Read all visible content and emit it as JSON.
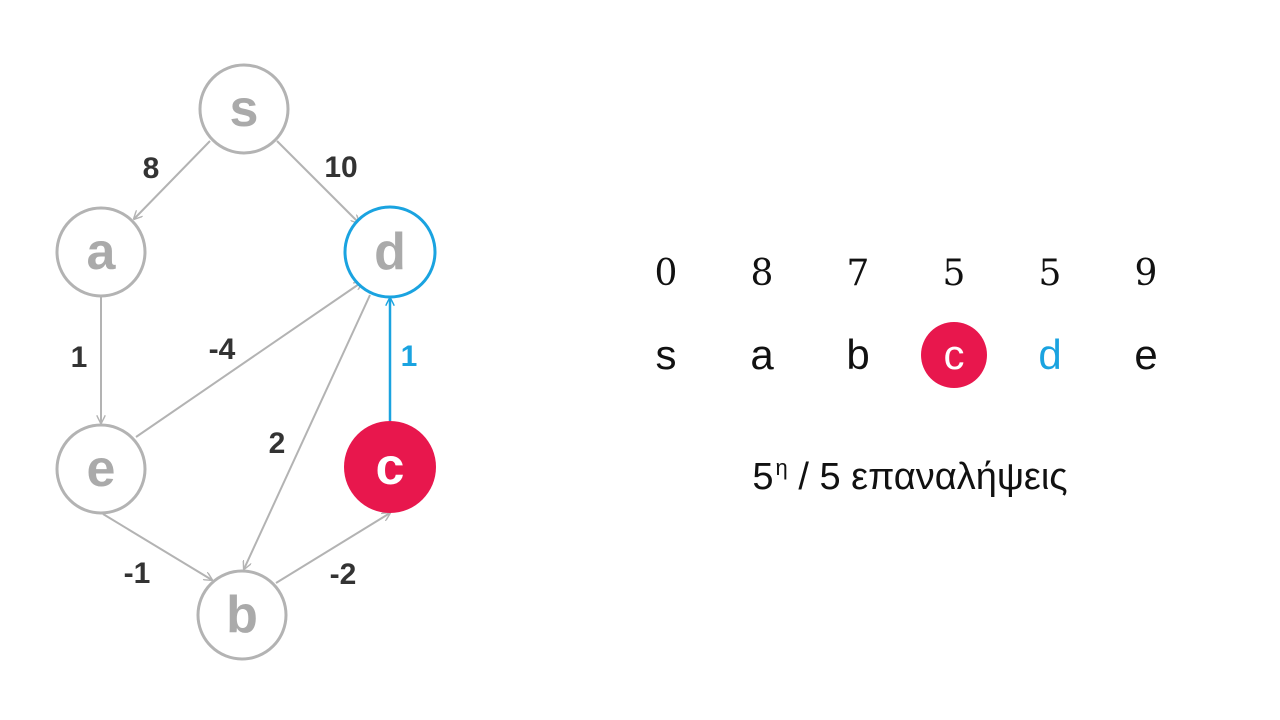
{
  "colors": {
    "default_stroke": "#b3b3b3",
    "default_text": "#aaaaaa",
    "edge_label": "#333333",
    "active": "#e8174d",
    "target": "#1aa3e0"
  },
  "graph": {
    "nodes": {
      "s": {
        "label": "s",
        "state": "default"
      },
      "a": {
        "label": "a",
        "state": "default"
      },
      "d": {
        "label": "d",
        "state": "target"
      },
      "e": {
        "label": "e",
        "state": "default"
      },
      "c": {
        "label": "c",
        "state": "active"
      },
      "b": {
        "label": "b",
        "state": "default"
      }
    },
    "edges": {
      "s_a": {
        "weight": "8"
      },
      "s_d": {
        "weight": "10"
      },
      "a_e": {
        "weight": "1"
      },
      "e_d": {
        "weight": "-4"
      },
      "d_b": {
        "weight": "2"
      },
      "c_d": {
        "weight": "1"
      },
      "e_b": {
        "weight": "-1"
      },
      "b_c": {
        "weight": "-2"
      }
    }
  },
  "table": {
    "distances": [
      "0",
      "8",
      "7",
      "5",
      "5",
      "9"
    ],
    "nodes": [
      "s",
      "a",
      "b",
      "c",
      "d",
      "e"
    ]
  },
  "iteration": {
    "current": "5",
    "ordinal_suffix": "η",
    "separator": " / ",
    "total_text": "5 επαναλήψεις"
  }
}
